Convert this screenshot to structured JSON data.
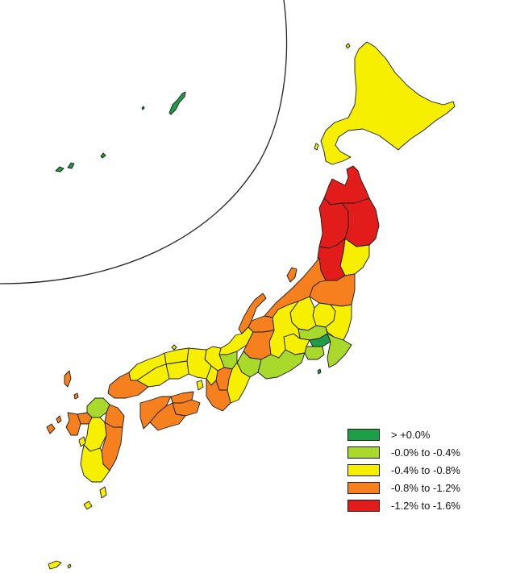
{
  "colors": {
    "above_zero": "#1f9e4a",
    "zero_to_m04": "#a8d92b",
    "m04_to_m08": "#f7ef00",
    "m08_to_m12": "#f7801e",
    "m12_to_m16": "#e21b1b",
    "outline": "#1a1a1a"
  },
  "legend": {
    "items": [
      {
        "label": "> +0.0%",
        "color_key": "above_zero"
      },
      {
        "label": "-0.0% to -0.4%",
        "color_key": "zero_to_m04"
      },
      {
        "label": "-0.4% to -0.8%",
        "color_key": "m04_to_m08"
      },
      {
        "label": "-0.8% to -1.2%",
        "color_key": "m08_to_m12"
      },
      {
        "label": "-1.2% to -1.6%",
        "color_key": "m12_to_m16"
      }
    ]
  }
}
